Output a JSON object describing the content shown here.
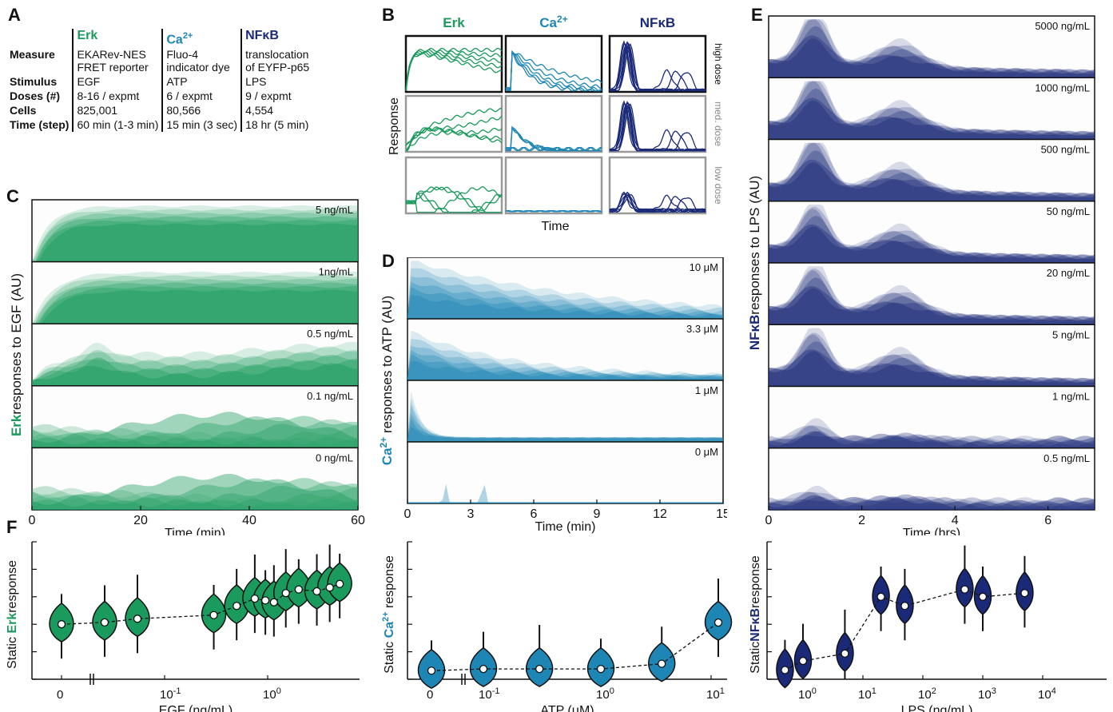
{
  "panels": {
    "A": "A",
    "B": "B",
    "C": "C",
    "D": "D",
    "E": "E",
    "F": "F"
  },
  "colors": {
    "erk": "#1a9a5c",
    "ca": "#1e86b4",
    "nfkb": "#1b2a78",
    "dark": "#111111"
  },
  "table": {
    "headers": [
      "Erk",
      "Ca",
      "NFκB"
    ],
    "ca_sup": "2+",
    "rows": [
      {
        "label": "Measure",
        "erk": [
          "EKARev-NES",
          "FRET reporter"
        ],
        "ca": [
          "Fluo-4",
          "indicator dye"
        ],
        "nfkb": [
          "translocation",
          "of EYFP-p65"
        ]
      },
      {
        "label": "Stimulus",
        "erk": [
          "EGF"
        ],
        "ca": [
          "ATP"
        ],
        "nfkb": [
          "LPS"
        ]
      },
      {
        "label": "Doses (#)",
        "erk": [
          "8-16 / expmt"
        ],
        "ca": [
          "6 / expmt"
        ],
        "nfkb": [
          "9 / expmt"
        ]
      },
      {
        "label": "Cells",
        "erk": [
          "825,001"
        ],
        "ca": [
          "80,566"
        ],
        "nfkb": [
          "4,554"
        ]
      },
      {
        "label": "Time (step)",
        "erk": [
          "60 min (1-3 min)"
        ],
        "ca": [
          "15 min (3 sec)"
        ],
        "nfkb": [
          "18 hr (5 min)"
        ]
      }
    ]
  },
  "panelB": {
    "col_titles": [
      "Erk",
      "Ca",
      "NFκB"
    ],
    "ca_sup": "2+",
    "row_labels": [
      "high dose",
      "med. dose",
      "low dose"
    ],
    "ylabel": "Response",
    "xlabel": "Time"
  },
  "chart_data": [
    {
      "id": "C",
      "type": "area",
      "ylabel_prefix": "Erk",
      "ylabel": "responses to EGF (AU)",
      "xlabel": "Time (min)",
      "xlim": [
        0,
        60
      ],
      "xticks": [
        "0",
        "20",
        "40",
        "60"
      ],
      "doses": [
        "5 ng/mL",
        "1ng/mL",
        "0.5 ng/mL",
        "0.1 ng/mL",
        "0 ng/mL"
      ]
    },
    {
      "id": "D",
      "type": "area",
      "ylabel_prefix": "Ca",
      "ylabel_sup": "2+",
      "ylabel": "responses to ATP (AU)",
      "xlabel": "Time (min)",
      "xlim": [
        0,
        15
      ],
      "xticks": [
        "0",
        "3",
        "6",
        "9",
        "12",
        "15"
      ],
      "doses": [
        "10 μM",
        "3.3 μM",
        "1 μM",
        "0 μM"
      ]
    },
    {
      "id": "E",
      "type": "area",
      "ylabel_prefix": "NFκB",
      "ylabel": "responses to LPS (AU)",
      "xlabel": "Time (hrs)",
      "xlim": [
        0,
        7
      ],
      "xticks": [
        "0",
        "2",
        "4",
        "6"
      ],
      "doses": [
        "5000 ng/mL",
        "1000 ng/mL",
        "500 ng/mL",
        "50 ng/mL",
        "20 ng/mL",
        "5 ng/mL",
        "1 ng/mL",
        "0.5 ng/mL"
      ]
    },
    {
      "id": "F1",
      "type": "violin",
      "ylabel_prefix": "Static ",
      "ylabel_mid": "Erk",
      "ylabel": "response",
      "xlabel": "EGF (ng/mL)",
      "xscale": "log",
      "xtick_labels": [
        "0",
        "10",
        "10"
      ],
      "xtick_sups": [
        "",
        "-1",
        "0"
      ],
      "points": [
        {
          "x": 0,
          "median": 0.3
        },
        {
          "x": 0.03,
          "median": 0.31
        },
        {
          "x": 0.06,
          "median": 0.33
        },
        {
          "x": 0.3,
          "median": 0.35
        },
        {
          "x": 0.5,
          "median": 0.4
        },
        {
          "x": 0.75,
          "median": 0.44
        },
        {
          "x": 0.95,
          "median": 0.43
        },
        {
          "x": 1.15,
          "median": 0.42
        },
        {
          "x": 1.5,
          "median": 0.47
        },
        {
          "x": 2.0,
          "median": 0.49
        },
        {
          "x": 3.0,
          "median": 0.48
        },
        {
          "x": 4.0,
          "median": 0.5
        },
        {
          "x": 5.0,
          "median": 0.52
        }
      ]
    },
    {
      "id": "F2",
      "type": "violin",
      "ylabel_prefix": "Static ",
      "ylabel_mid": "Ca",
      "ylabel_sup": "2+",
      "ylabel": " response",
      "xlabel": "ATP (μM)",
      "xscale": "log",
      "xtick_labels": [
        "0",
        "10",
        "10",
        "10"
      ],
      "xtick_sups": [
        "",
        "-1",
        "0",
        "1"
      ],
      "points": [
        {
          "x": 0,
          "median": 0.05
        },
        {
          "x": 0.1,
          "median": 0.06
        },
        {
          "x": 0.3,
          "median": 0.06
        },
        {
          "x": 1,
          "median": 0.06
        },
        {
          "x": 3.3,
          "median": 0.09
        },
        {
          "x": 10,
          "median": 0.33
        }
      ]
    },
    {
      "id": "F3",
      "type": "violin",
      "ylabel_prefix": "Static",
      "ylabel_mid": "NFκB",
      "ylabel": "response",
      "xlabel": "LPS (ng/mL)",
      "xscale": "log",
      "xtick_labels": [
        "10",
        "10",
        "10",
        "10",
        "10"
      ],
      "xtick_sups": [
        "0",
        "1",
        "2",
        "3",
        "4"
      ],
      "points": [
        {
          "x": 0.5,
          "median": 0.05
        },
        {
          "x": 1,
          "median": 0.1
        },
        {
          "x": 5,
          "median": 0.14
        },
        {
          "x": 20,
          "median": 0.45
        },
        {
          "x": 50,
          "median": 0.4
        },
        {
          "x": 500,
          "median": 0.49
        },
        {
          "x": 1000,
          "median": 0.45
        },
        {
          "x": 5000,
          "median": 0.47
        }
      ]
    }
  ]
}
